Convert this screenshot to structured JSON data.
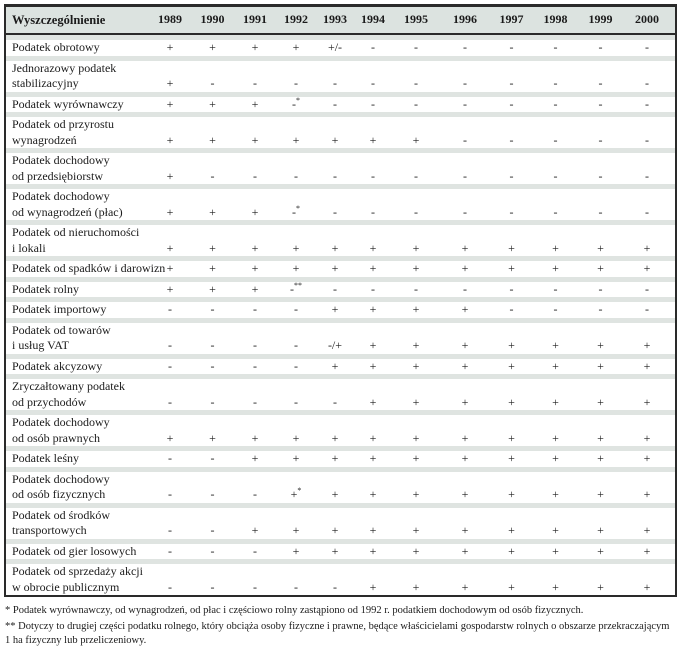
{
  "table": {
    "header": {
      "label": "Wyszczególnienie",
      "years": [
        "1989",
        "1990",
        "1991",
        "1992",
        "1993",
        "1994",
        "1995",
        "1996",
        "1997",
        "1998",
        "1999",
        "2000"
      ]
    },
    "rows": [
      {
        "label_lines": [
          "Podatek obrotowy"
        ],
        "values": [
          "+",
          "+",
          "+",
          "+",
          "+/-",
          "-",
          "-",
          "-",
          "-",
          "-",
          "-",
          "-"
        ]
      },
      {
        "label_lines": [
          "Jednorazowy podatek",
          "stabilizacyjny"
        ],
        "values": [
          "+",
          "-",
          "-",
          "-",
          "-",
          "-",
          "-",
          "-",
          "-",
          "-",
          "-",
          "-"
        ]
      },
      {
        "label_lines": [
          "Podatek wyrównawczy"
        ],
        "values": [
          "+",
          "+",
          "+",
          "-*",
          "-",
          "-",
          "-",
          "-",
          "-",
          "-",
          "-",
          "-"
        ]
      },
      {
        "label_lines": [
          "Podatek od przyrostu",
          "wynagrodzeń"
        ],
        "values": [
          "+",
          "+",
          "+",
          "+",
          "+",
          "+",
          "+",
          "-",
          "-",
          "-",
          "-",
          "-"
        ]
      },
      {
        "label_lines": [
          "Podatek dochodowy",
          "od przedsiębiorstw"
        ],
        "values": [
          "+",
          "-",
          "-",
          "-",
          "-",
          "-",
          "-",
          "-",
          "-",
          "-",
          "-",
          "-"
        ]
      },
      {
        "label_lines": [
          "Podatek dochodowy",
          "od wynagrodzeń (płac)"
        ],
        "values": [
          "+",
          "+",
          "+",
          "-*",
          "-",
          "-",
          "-",
          "-",
          "-",
          "-",
          "-",
          "-"
        ]
      },
      {
        "label_lines": [
          "Podatek od nieruchomości",
          "i lokali"
        ],
        "values": [
          "+",
          "+",
          "+",
          "+",
          "+",
          "+",
          "+",
          "+",
          "+",
          "+",
          "+",
          "+"
        ]
      },
      {
        "label_lines": [
          "Podatek od spadków i darowizn"
        ],
        "values": [
          "+",
          "+",
          "+",
          "+",
          "+",
          "+",
          "+",
          "+",
          "+",
          "+",
          "+",
          "+"
        ]
      },
      {
        "label_lines": [
          "Podatek rolny"
        ],
        "values": [
          "+",
          "+",
          "+",
          "-**",
          "-",
          "-",
          "-",
          "-",
          "-",
          "-",
          "-",
          "-"
        ]
      },
      {
        "label_lines": [
          "Podatek importowy"
        ],
        "values": [
          "-",
          "-",
          "-",
          "-",
          "+",
          "+",
          "+",
          "+",
          "-",
          "-",
          "-",
          "-"
        ]
      },
      {
        "label_lines": [
          "Podatek od towarów",
          "i usług VAT"
        ],
        "values": [
          "-",
          "-",
          "-",
          "-",
          "-/+",
          "+",
          "+",
          "+",
          "+",
          "+",
          "+",
          "+"
        ]
      },
      {
        "label_lines": [
          "Podatek akcyzowy"
        ],
        "values": [
          "-",
          "-",
          "-",
          "-",
          "+",
          "+",
          "+",
          "+",
          "+",
          "+",
          "+",
          "+"
        ]
      },
      {
        "label_lines": [
          "Zryczałtowany podatek",
          "od przychodów"
        ],
        "values": [
          "-",
          "-",
          "-",
          "-",
          "-",
          "+",
          "+",
          "+",
          "+",
          "+",
          "+",
          "+"
        ]
      },
      {
        "label_lines": [
          "Podatek dochodowy",
          "od osób prawnych"
        ],
        "values": [
          "+",
          "+",
          "+",
          "+",
          "+",
          "+",
          "+",
          "+",
          "+",
          "+",
          "+",
          "+"
        ]
      },
      {
        "label_lines": [
          "Podatek leśny"
        ],
        "values": [
          "-",
          "-",
          "+",
          "+",
          "+",
          "+",
          "+",
          "+",
          "+",
          "+",
          "+",
          "+"
        ]
      },
      {
        "label_lines": [
          "Podatek dochodowy",
          "od osób fizycznych"
        ],
        "values": [
          "-",
          "-",
          "-",
          "+*",
          "+",
          "+",
          "+",
          "+",
          "+",
          "+",
          "+",
          "+"
        ]
      },
      {
        "label_lines": [
          "Podatek od środków",
          "transportowych"
        ],
        "values": [
          "-",
          "-",
          "+",
          "+",
          "+",
          "+",
          "+",
          "+",
          "+",
          "+",
          "+",
          "+"
        ]
      },
      {
        "label_lines": [
          "Podatek od gier losowych"
        ],
        "values": [
          "-",
          "-",
          "-",
          "+",
          "+",
          "+",
          "+",
          "+",
          "+",
          "+",
          "+",
          "+"
        ]
      },
      {
        "label_lines": [
          "Podatek od sprzedaży akcji",
          "w obrocie publicznym"
        ],
        "values": [
          "-",
          "-",
          "-",
          "-",
          "-",
          "+",
          "+",
          "+",
          "+",
          "+",
          "+",
          "+"
        ]
      }
    ]
  },
  "footnotes": [
    "* Podatek wyrównawczy, od wynagrodzeń, od płac i częściowo rolny zastąpiono od 1992 r. podatkiem dochodowym od osób fizycznych.",
    "** Dotyczy to drugiej części podatku rolnego, który obciąża osoby fizyczne i prawne, będące właścicielami gospodarstw rolnych o obszarze przekraczającym 1 ha fizyczny lub przeliczeniowy."
  ],
  "colors": {
    "band": "#dfe4e1",
    "header_bg": "#dce3e0",
    "border": "#2a2a2a",
    "text": "#1b1b1b"
  }
}
